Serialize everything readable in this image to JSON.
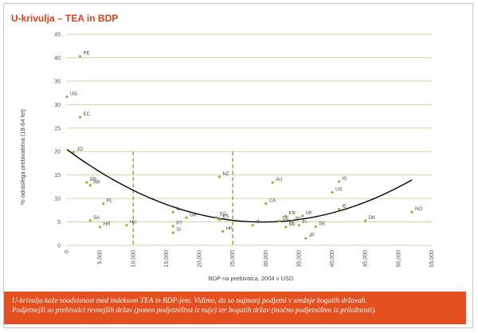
{
  "chart_data": {
    "type": "scatter",
    "title": "U-krivulja – TEA in BDP",
    "xlabel": "BDP na prebivalca, 2004 v USD",
    "ylabel": "% odraslega prebivalstva (18-64 let)",
    "xlim": [
      0,
      55000
    ],
    "ylim": [
      0,
      45
    ],
    "x_ticks": [
      0,
      5000,
      10000,
      15000,
      20000,
      25000,
      30000,
      35000,
      40000,
      45000,
      50000,
      55000
    ],
    "x_tick_labels": [
      "0",
      "5,000",
      "10,000",
      "15,000",
      "20,000",
      "25,000",
      "30,000",
      "35,000",
      "40,000",
      "45,000",
      "50,000",
      "55,000"
    ],
    "y_ticks": [
      0,
      5,
      10,
      15,
      20,
      25,
      30,
      35,
      40,
      45
    ],
    "y_tick_labels": [
      "0",
      "5",
      "10",
      "15",
      "20",
      "25",
      "30",
      "35",
      "40",
      "45"
    ],
    "grid": "horizontal",
    "vertical_reference_lines": [
      10000,
      25000
    ],
    "points": [
      {
        "label": "PE",
        "x": 2000,
        "y": 40.3
      },
      {
        "label": "UG",
        "x": 0,
        "y": 31.7
      },
      {
        "label": "EC",
        "x": 2000,
        "y": 27.3
      },
      {
        "label": "JO",
        "x": 1000,
        "y": 19.9
      },
      {
        "label": "BR",
        "x": 3000,
        "y": 13.4
      },
      {
        "label": "AR",
        "x": 3500,
        "y": 12.8
      },
      {
        "label": "PL",
        "x": 5500,
        "y": 8.9
      },
      {
        "label": "SA",
        "x": 3500,
        "y": 5.3
      },
      {
        "label": "HR",
        "x": 5000,
        "y": 3.9
      },
      {
        "label": "HU",
        "x": 9000,
        "y": 4.3
      },
      {
        "label": "IL",
        "x": 16000,
        "y": 7.1
      },
      {
        "label": "GR",
        "x": 18000,
        "y": 5.9
      },
      {
        "label": "PT",
        "x": 16000,
        "y": 4.1
      },
      {
        "label": "SI",
        "x": 16000,
        "y": 2.7
      },
      {
        "label": "NZ",
        "x": 23000,
        "y": 14.6
      },
      {
        "label": "SG",
        "x": 22500,
        "y": 6.0
      },
      {
        "label": "ES",
        "x": 23000,
        "y": 5.5
      },
      {
        "label": "HK",
        "x": 23500,
        "y": 3.0
      },
      {
        "label": "AU",
        "x": 31000,
        "y": 13.4
      },
      {
        "label": "CA",
        "x": 30000,
        "y": 8.9
      },
      {
        "label": "IT",
        "x": 28000,
        "y": 4.3
      },
      {
        "label": "DE",
        "x": 32000,
        "y": 5.2
      },
      {
        "label": "FR",
        "x": 33000,
        "y": 6.2
      },
      {
        "label": "NL",
        "x": 34000,
        "y": 5.1
      },
      {
        "label": "UK",
        "x": 35500,
        "y": 6.3
      },
      {
        "label": "BE",
        "x": 33000,
        "y": 3.9
      },
      {
        "label": "FI",
        "x": 35000,
        "y": 4.3
      },
      {
        "label": "SE",
        "x": 37500,
        "y": 4.0
      },
      {
        "label": "JP",
        "x": 36000,
        "y": 1.5
      },
      {
        "label": "IS",
        "x": 41000,
        "y": 13.6
      },
      {
        "label": "US",
        "x": 40000,
        "y": 11.3
      },
      {
        "label": "IE",
        "x": 41000,
        "y": 7.7
      },
      {
        "label": "DK",
        "x": 45000,
        "y": 5.3
      },
      {
        "label": "NO",
        "x": 52000,
        "y": 7.1
      }
    ],
    "trend_curve": {
      "type": "quadratic",
      "x": [
        0,
        5000,
        10000,
        15000,
        20000,
        25000,
        27500,
        30000,
        35000,
        40000,
        45000,
        52000
      ],
      "y": [
        20.5,
        15.8,
        11.8,
        8.7,
        6.4,
        5.0,
        4.7,
        4.7,
        5.6,
        7.6,
        10.3,
        13.0
      ]
    }
  },
  "caption": {
    "line1": "U-krivulja kaže soodvisnost med indeksom TEA in BDP-jem. Vidimo, da so najmanj podjetni v srednje bogatih državah.",
    "line2": "Podjetnejši so prebivalci revnejših držav (ponen podjetništva iz nuje) ter bogatih držav (močno podjetništvo iz priložnosti)."
  },
  "colors": {
    "title": "#d8401b",
    "marker": "#8db42a",
    "grid": "#c9d8a0",
    "reference_line": "#7aa821",
    "curve": "#000000",
    "caption_bg": "#e4501f"
  }
}
